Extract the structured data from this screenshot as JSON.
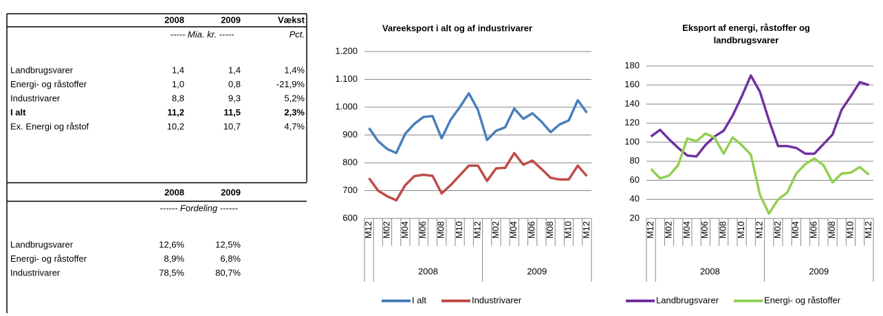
{
  "table1": {
    "header": [
      "2008",
      "2009",
      "Vækst"
    ],
    "units": [
      "----- Mia. kr. -----",
      "Pct."
    ],
    "rows": [
      {
        "label": "Landbrugsvarer",
        "cells": [
          "1,4",
          "1,4",
          "1,4%"
        ]
      },
      {
        "label": "Energi- og råstoffer",
        "cells": [
          "1,0",
          "0,8",
          "-21,9%"
        ]
      },
      {
        "label": "Industrivarer",
        "cells": [
          "8,8",
          "9,3",
          "5,2%"
        ]
      },
      {
        "label": "I alt",
        "cells": [
          "11,2",
          "11,5",
          "2,3%"
        ],
        "bold": true
      },
      {
        "label": "Ex. Energi og råstof",
        "cells": [
          "10,2",
          "10,7",
          "4,7%"
        ]
      }
    ]
  },
  "table2": {
    "header": [
      "2008",
      "2009"
    ],
    "units": [
      "------ Fordeling ------"
    ],
    "rows": [
      {
        "label": "Landbrugsvarer",
        "cells": [
          "12,6%",
          "12,5%"
        ]
      },
      {
        "label": "Energi- og råstoffer",
        "cells": [
          "8,9%",
          "6,8%"
        ]
      },
      {
        "label": "Industrivarer",
        "cells": [
          "78,5%",
          "80,7%"
        ]
      }
    ]
  },
  "chart_data": [
    {
      "type": "line",
      "title": "Vareeksport i alt og af industrivarer",
      "categories": [
        "M12",
        null,
        "M02",
        null,
        "M04",
        null,
        "M06",
        null,
        "M08",
        null,
        "M10",
        null,
        "M12",
        null,
        "M02",
        null,
        "M04",
        null,
        "M06",
        null,
        "M08",
        null,
        "M10",
        null,
        "M12"
      ],
      "groups": [
        "2008",
        "2009"
      ],
      "ylim": [
        600,
        1200
      ],
      "yticks": [
        600,
        700,
        800,
        900,
        {
          "value": 1000,
          "label": "1.000"
        },
        {
          "value": 1100,
          "label": "1.100"
        },
        {
          "value": 1200,
          "label": "1.200"
        }
      ],
      "grid": true,
      "series": [
        {
          "name": "I alt",
          "color": "#4a7ebb",
          "values": [
            925,
            878,
            850,
            835,
            905,
            940,
            965,
            968,
            888,
            955,
            1000,
            1050,
            990,
            882,
            915,
            928,
            995,
            958,
            978,
            948,
            910,
            938,
            952,
            1025,
            980
          ]
        },
        {
          "name": "Industrivarer",
          "color": "#be4b48",
          "values": [
            745,
            700,
            680,
            665,
            720,
            752,
            757,
            753,
            690,
            720,
            755,
            790,
            790,
            735,
            780,
            782,
            835,
            793,
            808,
            778,
            746,
            740,
            740,
            790,
            752
          ]
        }
      ]
    },
    {
      "type": "line",
      "title": "Eksport af energi, råstoffer og landbrugsvarer",
      "categories": [
        "M12",
        null,
        "M02",
        null,
        "M04",
        null,
        "M06",
        null,
        "M08",
        null,
        "M10",
        null,
        "M12",
        null,
        "M02",
        null,
        "M04",
        null,
        "M06",
        null,
        "M08",
        null,
        "M10",
        null,
        "M12"
      ],
      "groups": [
        "2008",
        "2009"
      ],
      "ylim": [
        20,
        180
      ],
      "yticks": [
        20,
        40,
        60,
        80,
        100,
        120,
        140,
        160,
        180
      ],
      "grid": true,
      "series": [
        {
          "name": "Landbrugsvarer",
          "color": "#7030a0",
          "values": [
            106,
            113,
            103,
            94,
            86,
            85,
            97,
            106,
            112,
            128,
            148,
            170,
            153,
            123,
            96,
            96,
            94,
            88,
            88,
            98,
            108,
            134,
            148,
            163,
            160
          ]
        },
        {
          "name": "Energi- og råstoffer",
          "color": "#92d050",
          "values": [
            72,
            62,
            65,
            76,
            104,
            101,
            109,
            105,
            88,
            105,
            97,
            87,
            45,
            25,
            40,
            47,
            67,
            77,
            83,
            76,
            58,
            67,
            68,
            74,
            66
          ]
        }
      ]
    }
  ]
}
